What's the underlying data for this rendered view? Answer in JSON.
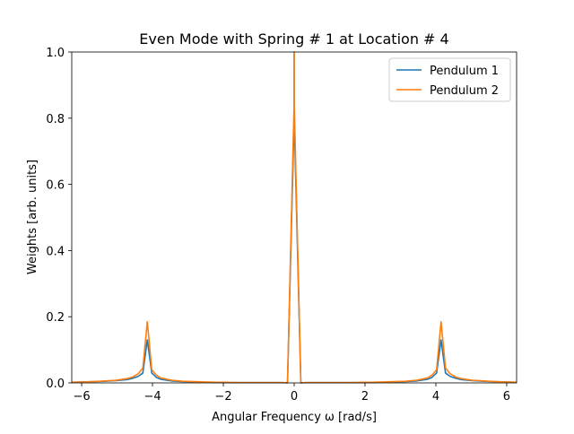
{
  "chart_data": {
    "type": "line",
    "title": "Even Mode with Spring # 1 at Location # 4",
    "xlabel": "Angular Frequency ω [rad/s]",
    "ylabel": "Weights [arb. units]",
    "xlim": [
      -6.28,
      6.28
    ],
    "ylim": [
      0.0,
      1.0
    ],
    "xticks": [
      -6,
      -4,
      -2,
      0,
      2,
      4,
      6
    ],
    "xtick_labels": [
      "−6",
      "−4",
      "−2",
      "0",
      "2",
      "4",
      "6"
    ],
    "yticks": [
      0.0,
      0.2,
      0.4,
      0.6,
      0.8,
      1.0
    ],
    "ytick_labels": [
      "0.0",
      "0.2",
      "0.4",
      "0.6",
      "0.8",
      "1.0"
    ],
    "grid": false,
    "legend_position": "top-right",
    "x": [
      -6.2832,
      -5.969,
      -5.6549,
      -5.3407,
      -5.0265,
      -4.7124,
      -4.5553,
      -4.3982,
      -4.2726,
      -4.1469,
      -4.0212,
      -3.8956,
      -3.7699,
      -3.4558,
      -3.1416,
      -2.8274,
      -2.5133,
      -2.1991,
      -1.885,
      -1.5708,
      -1.2566,
      -0.9425,
      -0.6283,
      -0.3142,
      -0.1885,
      -0.001,
      0.0,
      0.001,
      0.1885,
      0.3142,
      0.6283,
      0.9425,
      1.2566,
      1.5708,
      1.885,
      2.1991,
      2.5133,
      2.8274,
      3.1416,
      3.4558,
      3.7699,
      3.8956,
      4.0212,
      4.1469,
      4.2726,
      4.3982,
      4.5553,
      4.7124,
      5.0265,
      5.3407,
      5.6549,
      5.969,
      6.2832
    ],
    "series": [
      {
        "name": "Pendulum 1",
        "color": "#1f77b4",
        "values": [
          0.002,
          0.003,
          0.004,
          0.005,
          0.007,
          0.01,
          0.014,
          0.02,
          0.03,
          0.13,
          0.03,
          0.017,
          0.011,
          0.006,
          0.004,
          0.003,
          0.002,
          0.0015,
          0.001,
          0.001,
          0.001,
          0.001,
          0.001,
          0.001,
          0.0,
          0.8,
          1.0,
          0.8,
          0.0,
          0.001,
          0.001,
          0.001,
          0.001,
          0.001,
          0.001,
          0.0015,
          0.002,
          0.003,
          0.004,
          0.006,
          0.011,
          0.017,
          0.03,
          0.13,
          0.03,
          0.02,
          0.014,
          0.01,
          0.007,
          0.005,
          0.004,
          0.003,
          0.002
        ]
      },
      {
        "name": "Pendulum 2",
        "color": "#ff7f0e",
        "values": [
          0.002,
          0.003,
          0.004,
          0.006,
          0.008,
          0.013,
          0.018,
          0.028,
          0.045,
          0.185,
          0.04,
          0.024,
          0.015,
          0.008,
          0.005,
          0.004,
          0.003,
          0.002,
          0.0015,
          0.001,
          0.001,
          0.001,
          0.001,
          0.001,
          0.0,
          0.85,
          1.0,
          0.85,
          0.0,
          0.001,
          0.001,
          0.001,
          0.001,
          0.001,
          0.0015,
          0.002,
          0.003,
          0.004,
          0.005,
          0.008,
          0.015,
          0.024,
          0.04,
          0.185,
          0.045,
          0.028,
          0.018,
          0.013,
          0.008,
          0.006,
          0.004,
          0.003,
          0.002
        ]
      }
    ]
  }
}
